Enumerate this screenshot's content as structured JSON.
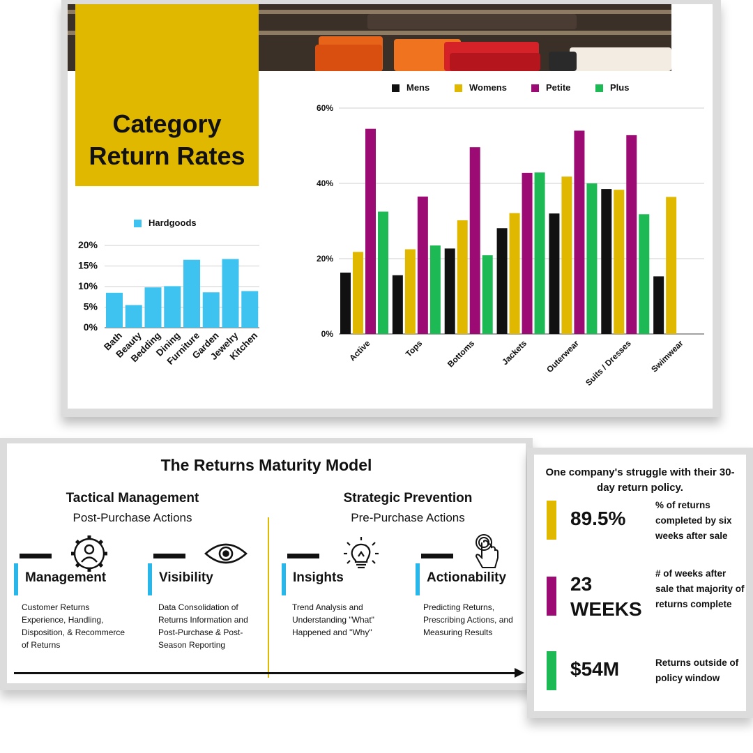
{
  "header": {
    "title_line1": "Category",
    "title_line2": "Return Rates"
  },
  "colors": {
    "mens": "#111111",
    "womens": "#e0b800",
    "petite": "#9c0b73",
    "plus": "#1db954",
    "hardgoods": "#3ec3f0",
    "accent_gold": "#e0b800",
    "accent_blue": "#29b6e8"
  },
  "chart_data": [
    {
      "type": "bar",
      "categories": [
        "Bath",
        "Beauty",
        "Bedding",
        "Dining",
        "Furniture",
        "Garden",
        "Jewelry",
        "Kitchen"
      ],
      "series": [
        {
          "name": "Hardgoods",
          "values": [
            8.5,
            5.5,
            9.8,
            10.1,
            16.5,
            8.6,
            16.7,
            8.9
          ],
          "color": "#3ec3f0"
        }
      ],
      "ylim": [
        0,
        20
      ],
      "yticks": [
        0,
        5,
        10,
        15,
        20
      ],
      "ytick_labels": [
        "0%",
        "5%",
        "10%",
        "15%",
        "20%"
      ],
      "legend": "top",
      "grid": true
    },
    {
      "type": "bar",
      "categories": [
        "Active",
        "Tops",
        "Bottoms",
        "Jackets",
        "Outerwear",
        "Suits / Dresses",
        "Swimwear"
      ],
      "series": [
        {
          "name": "Mens",
          "values": [
            16.3,
            15.6,
            22.7,
            28.1,
            32.0,
            38.5,
            15.3
          ],
          "color": "#111111"
        },
        {
          "name": "Womens",
          "values": [
            21.8,
            22.5,
            30.2,
            32.1,
            41.8,
            38.3,
            36.4
          ],
          "color": "#e0b800"
        },
        {
          "name": "Petite",
          "values": [
            54.5,
            36.5,
            49.6,
            42.8,
            54.0,
            52.8,
            null
          ],
          "color": "#9c0b73"
        },
        {
          "name": "Plus",
          "values": [
            32.5,
            23.5,
            20.9,
            42.9,
            40.0,
            31.8,
            null
          ],
          "color": "#1db954"
        }
      ],
      "ylim": [
        0,
        60
      ],
      "yticks": [
        0,
        20,
        40,
        60
      ],
      "ytick_labels": [
        "0%",
        "20%",
        "40%",
        "60%"
      ],
      "legend": "top",
      "grid": true
    }
  ],
  "model": {
    "title": "The Returns Maturity Model",
    "left": {
      "heading": "Tactical Management",
      "sub": "Post-Purchase Actions"
    },
    "right": {
      "heading": "Strategic Prevention",
      "sub": "Pre-Purchase Actions"
    },
    "items": [
      {
        "label": "Management",
        "icon": "user-gear-icon",
        "desc": "Customer Returns Experience, Handling, Disposition, & Recommerce of Returns"
      },
      {
        "label": "Visibility",
        "icon": "eye-icon",
        "desc": "Data Consolidation of Returns Information and Post-Purchase & Post-Season Reporting"
      },
      {
        "label": "Insights",
        "icon": "lightbulb-icon",
        "desc": "Trend Analysis and Understanding \"What\" Happened and \"Why\""
      },
      {
        "label": "Actionability",
        "icon": "tap-hand-icon",
        "desc": "Predicting Returns, Prescribing Actions, and Measuring Results"
      }
    ]
  },
  "stats": {
    "heading": "One company's struggle with their 30-day return policy.",
    "items": [
      {
        "value": "89.5%",
        "desc": "% of returns completed by six weeks after sale",
        "color": "#e0b800"
      },
      {
        "value": "23 WEEKS",
        "desc": "# of weeks after sale that majority of returns complete",
        "color": "#9c0b73"
      },
      {
        "value": "$54M",
        "desc": "Returns outside of policy window",
        "color": "#1db954"
      }
    ]
  }
}
